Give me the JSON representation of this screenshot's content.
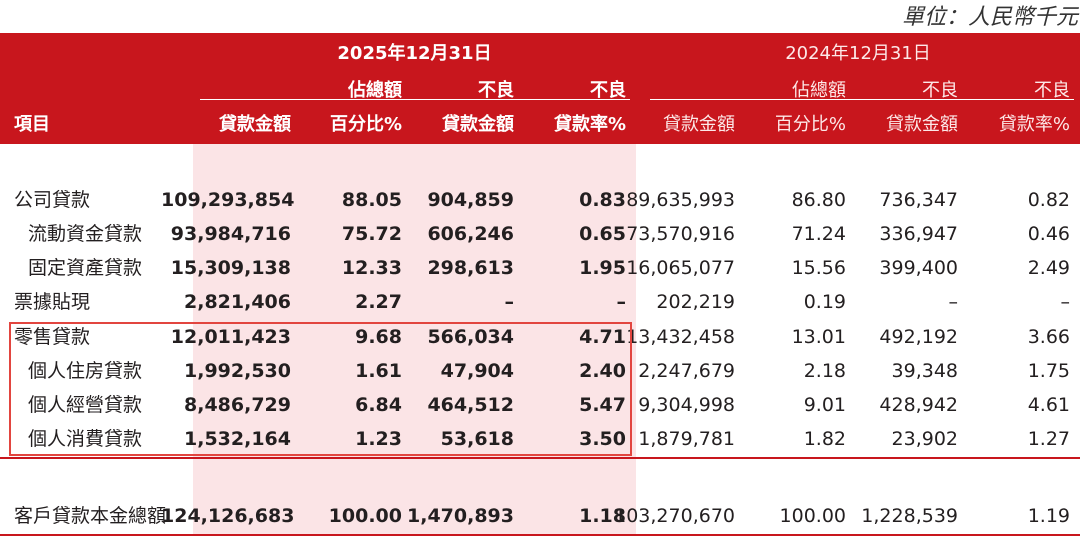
{
  "unit_label": "單位：人民幣千元",
  "header": {
    "period_current": "2025年12月31日",
    "period_prior": "2024年12月31日",
    "item": "項目",
    "cols": [
      {
        "top": "",
        "bottom": "貸款金額"
      },
      {
        "top": "佔總額",
        "bottom": "百分比%"
      },
      {
        "top": "不良",
        "bottom": "貸款金額"
      },
      {
        "top": "不良",
        "bottom": "貸款率%"
      },
      {
        "top": "",
        "bottom": "貸款金額"
      },
      {
        "top": "佔總額",
        "bottom": "百分比%"
      },
      {
        "top": "不良",
        "bottom": "貸款金額"
      },
      {
        "top": "不良",
        "bottom": "貸款率%"
      }
    ]
  },
  "rows": [
    {
      "label": "公司貸款",
      "indent": false,
      "values": [
        "109,293,854",
        "88.05",
        "904,859",
        "0.83",
        "89,635,993",
        "86.80",
        "736,347",
        "0.82"
      ]
    },
    {
      "label": "流動資金貸款",
      "indent": true,
      "values": [
        "93,984,716",
        "75.72",
        "606,246",
        "0.65",
        "73,570,916",
        "71.24",
        "336,947",
        "0.46"
      ]
    },
    {
      "label": "固定資產貸款",
      "indent": true,
      "values": [
        "15,309,138",
        "12.33",
        "298,613",
        "1.95",
        "16,065,077",
        "15.56",
        "399,400",
        "2.49"
      ]
    },
    {
      "label": "票據貼現",
      "indent": false,
      "values": [
        "2,821,406",
        "2.27",
        "–",
        "–",
        "202,219",
        "0.19",
        "–",
        "–"
      ]
    },
    {
      "label": "零售貸款",
      "indent": false,
      "values": [
        "12,011,423",
        "9.68",
        "566,034",
        "4.71",
        "13,432,458",
        "13.01",
        "492,192",
        "3.66"
      ]
    },
    {
      "label": "個人住房貸款",
      "indent": true,
      "values": [
        "1,992,530",
        "1.61",
        "47,904",
        "2.40",
        "2,247,679",
        "2.18",
        "39,348",
        "1.75"
      ]
    },
    {
      "label": "個人經營貸款",
      "indent": true,
      "values": [
        "8,486,729",
        "6.84",
        "464,512",
        "5.47",
        "9,304,998",
        "9.01",
        "428,942",
        "4.61"
      ]
    },
    {
      "label": "個人消費貸款",
      "indent": true,
      "values": [
        "1,532,164",
        "1.23",
        "53,618",
        "3.50",
        "1,879,781",
        "1.82",
        "23,902",
        "1.27"
      ]
    }
  ],
  "total": {
    "label": "客戶貸款本金總額",
    "values": [
      "124,126,683",
      "100.00",
      "1,470,893",
      "1.18",
      "103,270,670",
      "100.00",
      "1,228,539",
      "1.19"
    ]
  },
  "colors": {
    "header_red": "#c8161d",
    "shade_pink": "#fbe4e6",
    "highlight_border": "#e2453f"
  }
}
